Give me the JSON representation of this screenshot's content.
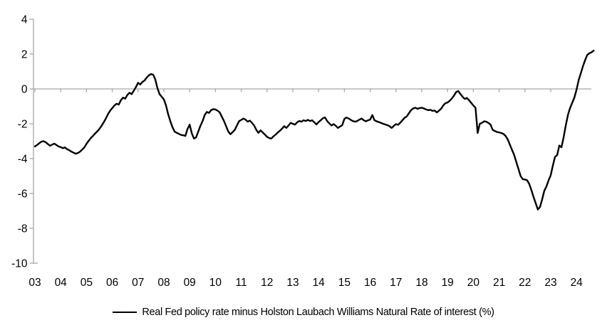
{
  "chart_data": {
    "type": "line",
    "title": "",
    "xlabel": "",
    "ylabel": "",
    "ylim": [
      -10,
      4
    ],
    "y_ticks": [
      4,
      2,
      0,
      -2,
      -4,
      -6,
      -8,
      -10
    ],
    "x_tick_labels": [
      "03",
      "04",
      "05",
      "06",
      "07",
      "08",
      "09",
      "10",
      "11",
      "12",
      "13",
      "14",
      "15",
      "16",
      "17",
      "18",
      "19",
      "20",
      "21",
      "22",
      "23",
      "24"
    ],
    "x_start": "2003-01",
    "points_per_year": 12,
    "grid": false,
    "legend_position": "bottom-center",
    "axis_color": "#a6a6a6",
    "line_color": "#000000",
    "zero_axis_crossing": true,
    "series": [
      {
        "name": "Real Fed policy rate minus Holston Laubach Williams Natural Rate of interest (%)",
        "values": [
          -3.3,
          -3.22,
          -3.12,
          -3.03,
          -3.0,
          -3.06,
          -3.16,
          -3.26,
          -3.2,
          -3.14,
          -3.22,
          -3.3,
          -3.34,
          -3.4,
          -3.36,
          -3.46,
          -3.52,
          -3.6,
          -3.66,
          -3.72,
          -3.68,
          -3.6,
          -3.48,
          -3.36,
          -3.15,
          -2.98,
          -2.82,
          -2.7,
          -2.56,
          -2.44,
          -2.3,
          -2.12,
          -1.92,
          -1.7,
          -1.45,
          -1.25,
          -1.1,
          -0.95,
          -0.85,
          -0.9,
          -0.65,
          -0.5,
          -0.56,
          -0.35,
          -0.22,
          -0.3,
          -0.1,
          0.1,
          0.35,
          0.25,
          0.4,
          0.48,
          0.65,
          0.78,
          0.85,
          0.82,
          0.55,
          0.05,
          -0.3,
          -0.45,
          -0.6,
          -0.95,
          -1.45,
          -1.85,
          -2.2,
          -2.45,
          -2.52,
          -2.58,
          -2.64,
          -2.66,
          -2.7,
          -2.3,
          -2.05,
          -2.55,
          -2.85,
          -2.78,
          -2.45,
          -2.12,
          -1.85,
          -1.5,
          -1.32,
          -1.38,
          -1.22,
          -1.16,
          -1.18,
          -1.25,
          -1.35,
          -1.6,
          -1.85,
          -2.15,
          -2.45,
          -2.6,
          -2.48,
          -2.35,
          -2.1,
          -1.85,
          -1.78,
          -1.7,
          -1.76,
          -1.88,
          -1.82,
          -1.95,
          -2.1,
          -2.35,
          -2.52,
          -2.38,
          -2.5,
          -2.62,
          -2.75,
          -2.82,
          -2.85,
          -2.72,
          -2.62,
          -2.5,
          -2.4,
          -2.28,
          -2.14,
          -2.24,
          -2.1,
          -1.95,
          -2.0,
          -2.05,
          -1.92,
          -1.84,
          -1.88,
          -1.8,
          -1.84,
          -1.78,
          -1.84,
          -1.8,
          -1.92,
          -2.04,
          -1.9,
          -1.8,
          -1.68,
          -1.64,
          -1.85,
          -1.98,
          -2.1,
          -2.02,
          -2.12,
          -2.24,
          -2.16,
          -2.08,
          -1.72,
          -1.64,
          -1.7,
          -1.78,
          -1.85,
          -1.88,
          -1.84,
          -1.76,
          -1.7,
          -1.8,
          -1.86,
          -1.8,
          -1.76,
          -1.5,
          -1.8,
          -1.86,
          -1.9,
          -1.95,
          -2.0,
          -2.04,
          -2.08,
          -2.14,
          -2.24,
          -2.12,
          -2.02,
          -2.06,
          -1.94,
          -1.8,
          -1.66,
          -1.58,
          -1.4,
          -1.22,
          -1.12,
          -1.08,
          -1.14,
          -1.1,
          -1.08,
          -1.12,
          -1.18,
          -1.22,
          -1.2,
          -1.26,
          -1.24,
          -1.35,
          -1.25,
          -1.14,
          -0.95,
          -0.82,
          -0.78,
          -0.68,
          -0.55,
          -0.38,
          -0.18,
          -0.12,
          -0.3,
          -0.45,
          -0.58,
          -0.52,
          -0.65,
          -0.8,
          -0.95,
          -1.08,
          -2.53,
          -2.0,
          -1.95,
          -1.86,
          -1.88,
          -1.95,
          -2.05,
          -2.35,
          -2.42,
          -2.47,
          -2.5,
          -2.53,
          -2.58,
          -2.7,
          -2.9,
          -3.2,
          -3.5,
          -3.8,
          -4.2,
          -4.6,
          -5.0,
          -5.18,
          -5.2,
          -5.24,
          -5.45,
          -5.8,
          -6.2,
          -6.55,
          -6.92,
          -6.78,
          -6.35,
          -5.85,
          -5.6,
          -5.25,
          -4.95,
          -4.4,
          -3.9,
          -3.8,
          -3.25,
          -3.35,
          -2.78,
          -2.1,
          -1.5,
          -1.1,
          -0.8,
          -0.5,
          -0.05,
          0.5,
          0.9,
          1.3,
          1.65,
          1.95,
          2.05,
          2.1,
          2.2
        ]
      }
    ]
  },
  "legend": {
    "label": "Real Fed policy rate minus Holston Laubach Williams Natural Rate of interest (%)"
  }
}
